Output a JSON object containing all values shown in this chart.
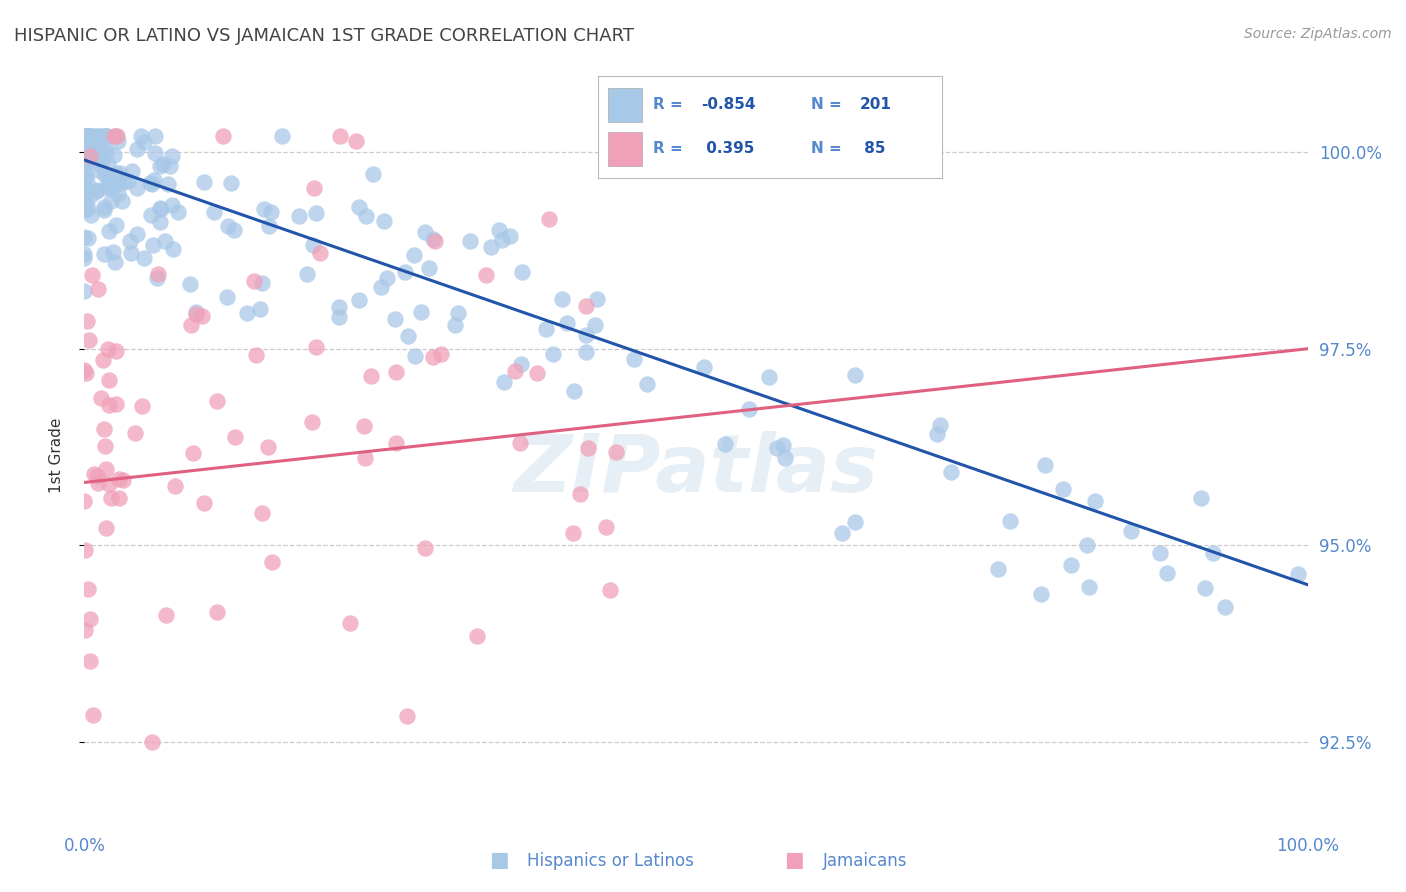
{
  "title": "HISPANIC OR LATINO VS JAMAICAN 1ST GRADE CORRELATION CHART",
  "source_text": "Source: ZipAtlas.com",
  "ylabel": "1st Grade",
  "watermark": "ZIPatlas",
  "blue_label": "Hispanics or Latinos",
  "pink_label": "Jamaicans",
  "blue_R": -0.854,
  "blue_N": 201,
  "pink_R": 0.395,
  "pink_N": 85,
  "blue_color": "#a8c8e8",
  "pink_color": "#f0a0b8",
  "blue_line_color": "#2255aa",
  "pink_line_color": "#e06080",
  "xlim": [
    0.0,
    1.0
  ],
  "ylim": [
    0.915,
    1.008
  ],
  "yticks": [
    0.925,
    0.95,
    0.975,
    1.0
  ],
  "ytick_labels": [
    "92.5%",
    "95.0%",
    "97.5%",
    "100.0%"
  ],
  "background_color": "#ffffff",
  "grid_color": "#cccccc",
  "title_color": "#444444",
  "axis_color": "#5588cc",
  "ylabel_color": "#333333"
}
